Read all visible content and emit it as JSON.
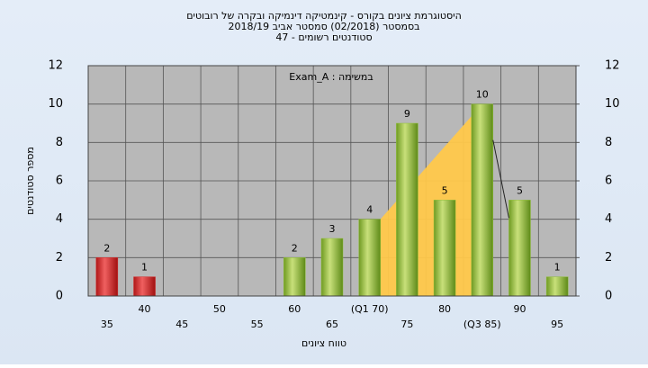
{
  "chart_data": {
    "type": "bar",
    "title": "היסטוגרמת ציונים בקורס - קינמטיקה דינמיקה ובקרה של רובוטים",
    "subtitle": "בסמסטר  (02/2018)  סמסטר אביב 2018/19",
    "subtitle2": "סטודנטים רשומים - 47",
    "annotation": "במשימה : Exam_A",
    "x_label": "טווח ציונים",
    "y_label": "מספר סטודנטים",
    "categories": [
      "35",
      "40",
      "45",
      "50",
      "55",
      "60",
      "65",
      "(Q1 70)",
      "75",
      "80",
      "(Q3 85)",
      "90",
      "95"
    ],
    "values": [
      2,
      1,
      0,
      0,
      0,
      2,
      3,
      4,
      9,
      5,
      10,
      5,
      1
    ],
    "colors": [
      "#d42a2a",
      "#d42a2a",
      "#8fbf3a",
      "#8fbf3a",
      "#8fbf3a",
      "#8fbf3a",
      "#8fbf3a",
      "#8fbf3a",
      "#8fbf3a",
      "#8fbf3a",
      "#8fbf3a",
      "#8fbf3a",
      "#8fbf3a"
    ],
    "ylim": [
      0,
      12
    ],
    "yticks": [
      0,
      2,
      4,
      6,
      8,
      10,
      12
    ],
    "y2lim": [
      0,
      12
    ],
    "y2ticks": [
      0,
      2,
      4,
      6,
      8,
      10,
      12
    ],
    "grid": true
  }
}
